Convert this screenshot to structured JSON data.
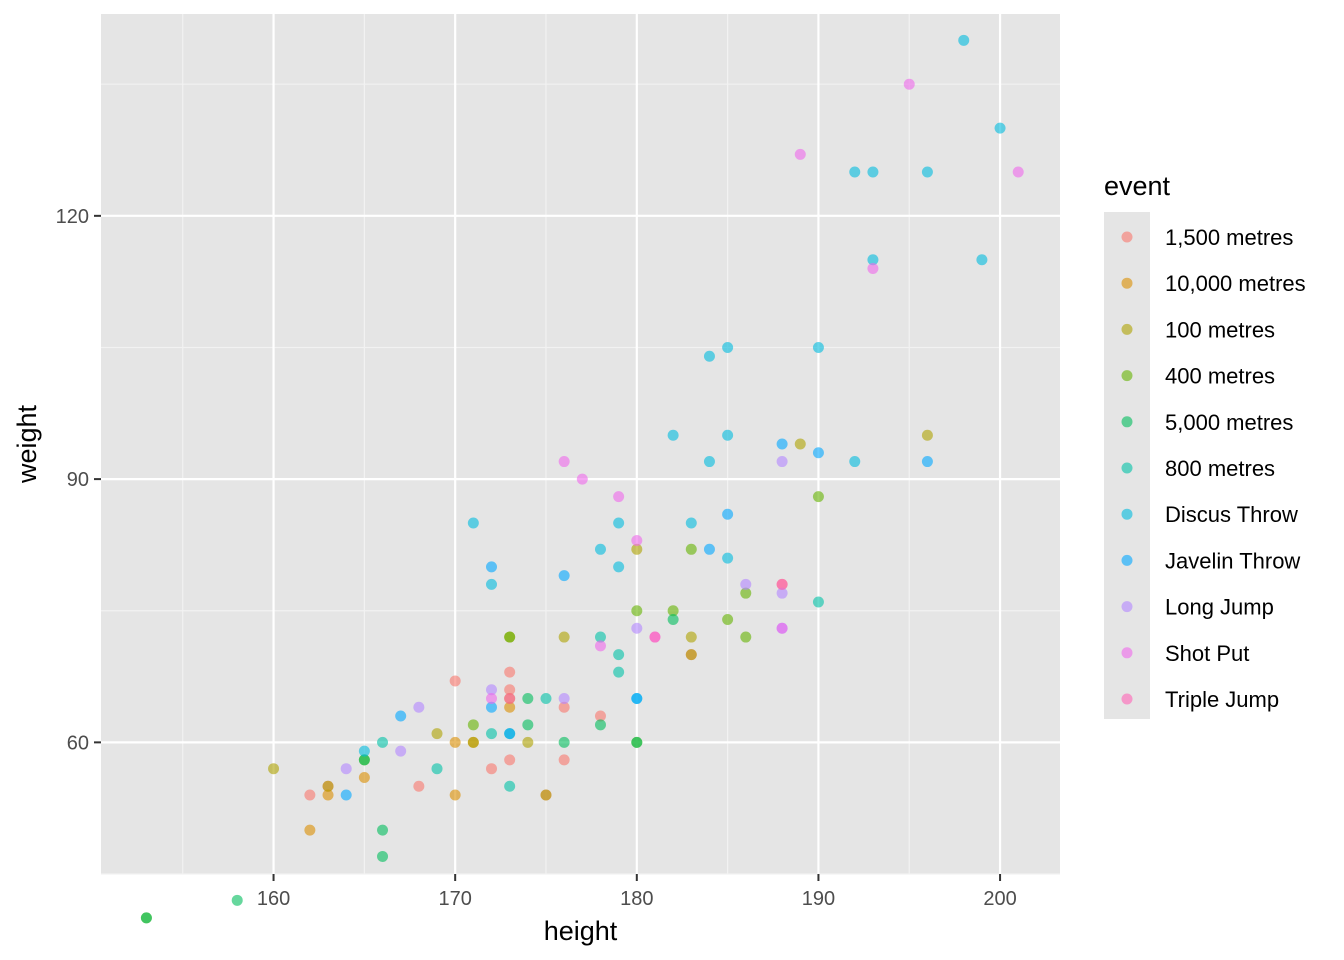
{
  "chart_data": {
    "type": "scatter",
    "xlabel": "height",
    "ylabel": "weight",
    "xlim": [
      150.5,
      203.3
    ],
    "ylim": [
      45,
      143
    ],
    "x_ticks": [
      160,
      170,
      180,
      190,
      200
    ],
    "y_ticks": [
      60,
      90,
      120
    ],
    "grid": true,
    "point_alpha": 0.6,
    "legend": {
      "title": "event",
      "position": "right"
    },
    "series": [
      {
        "name": "1,500 metres",
        "color": "#F8766D",
        "points": [
          [
            162,
            54
          ],
          [
            163,
            55
          ],
          [
            168,
            55
          ],
          [
            170,
            67
          ],
          [
            172,
            57
          ],
          [
            173,
            58
          ],
          [
            173,
            66
          ],
          [
            173,
            68
          ],
          [
            175,
            54
          ],
          [
            176,
            58
          ],
          [
            176,
            64
          ],
          [
            178,
            63
          ],
          [
            183,
            70
          ],
          [
            188,
            78
          ]
        ]
      },
      {
        "name": "10,000 metres",
        "color": "#DB8E00",
        "points": [
          [
            162,
            50
          ],
          [
            163,
            54
          ],
          [
            165,
            56
          ],
          [
            170,
            54
          ],
          [
            170,
            60
          ],
          [
            171,
            60
          ],
          [
            173,
            64
          ],
          [
            173,
            65
          ]
        ]
      },
      {
        "name": "100 metres",
        "color": "#AEA200",
        "points": [
          [
            160,
            57
          ],
          [
            163,
            55
          ],
          [
            169,
            61
          ],
          [
            171,
            60
          ],
          [
            173,
            72
          ],
          [
            174,
            60
          ],
          [
            175,
            54
          ],
          [
            176,
            72
          ],
          [
            180,
            82
          ],
          [
            183,
            70
          ],
          [
            183,
            72
          ],
          [
            189,
            94
          ],
          [
            196,
            95
          ]
        ]
      },
      {
        "name": "400 metres",
        "color": "#64B200",
        "points": [
          [
            153,
            40
          ],
          [
            165,
            58
          ],
          [
            171,
            62
          ],
          [
            173,
            72
          ],
          [
            180,
            60
          ],
          [
            180,
            75
          ],
          [
            182,
            75
          ],
          [
            183,
            82
          ],
          [
            185,
            74
          ],
          [
            186,
            72
          ],
          [
            186,
            77
          ],
          [
            190,
            88
          ]
        ]
      },
      {
        "name": "5,000 metres",
        "color": "#00BD5C",
        "points": [
          [
            153,
            40
          ],
          [
            158,
            42
          ],
          [
            165,
            58
          ],
          [
            166,
            47
          ],
          [
            166,
            50
          ],
          [
            174,
            62
          ],
          [
            174,
            65
          ],
          [
            176,
            60
          ],
          [
            178,
            62
          ],
          [
            180,
            60
          ],
          [
            182,
            74
          ]
        ]
      },
      {
        "name": "800 metres",
        "color": "#00C1A7",
        "points": [
          [
            166,
            60
          ],
          [
            169,
            57
          ],
          [
            172,
            61
          ],
          [
            173,
            55
          ],
          [
            173,
            61
          ],
          [
            175,
            65
          ],
          [
            178,
            72
          ],
          [
            179,
            68
          ],
          [
            179,
            70
          ],
          [
            190,
            76
          ]
        ]
      },
      {
        "name": "Discus Throw",
        "color": "#00BADE",
        "points": [
          [
            165,
            59
          ],
          [
            171,
            85
          ],
          [
            172,
            78
          ],
          [
            178,
            82
          ],
          [
            179,
            80
          ],
          [
            179,
            85
          ],
          [
            180,
            65
          ],
          [
            182,
            95
          ],
          [
            183,
            85
          ],
          [
            184,
            92
          ],
          [
            184,
            104
          ],
          [
            185,
            81
          ],
          [
            185,
            95
          ],
          [
            185,
            105
          ],
          [
            190,
            105
          ],
          [
            192,
            92
          ],
          [
            192,
            125
          ],
          [
            193,
            115
          ],
          [
            193,
            125
          ],
          [
            196,
            125
          ],
          [
            198,
            140
          ],
          [
            199,
            115
          ],
          [
            200,
            130
          ]
        ]
      },
      {
        "name": "Javelin Throw",
        "color": "#00A6FF",
        "points": [
          [
            164,
            54
          ],
          [
            167,
            63
          ],
          [
            172,
            64
          ],
          [
            172,
            80
          ],
          [
            173,
            61
          ],
          [
            176,
            79
          ],
          [
            180,
            65
          ],
          [
            184,
            82
          ],
          [
            185,
            86
          ],
          [
            188,
            94
          ],
          [
            190,
            93
          ],
          [
            196,
            92
          ]
        ]
      },
      {
        "name": "Long Jump",
        "color": "#B385FF",
        "points": [
          [
            164,
            57
          ],
          [
            167,
            59
          ],
          [
            168,
            64
          ],
          [
            172,
            66
          ],
          [
            176,
            65
          ],
          [
            180,
            73
          ],
          [
            186,
            78
          ],
          [
            188,
            73
          ],
          [
            188,
            77
          ],
          [
            188,
            92
          ]
        ]
      },
      {
        "name": "Shot Put",
        "color": "#EF67EB",
        "points": [
          [
            172,
            65
          ],
          [
            176,
            92
          ],
          [
            177,
            90
          ],
          [
            178,
            71
          ],
          [
            179,
            88
          ],
          [
            180,
            83
          ],
          [
            181,
            72
          ],
          [
            188,
            73
          ],
          [
            189,
            127
          ],
          [
            193,
            114
          ],
          [
            195,
            135
          ],
          [
            201,
            125
          ]
        ]
      },
      {
        "name": "Triple Jump",
        "color": "#FF63B6",
        "points": [
          [
            173,
            65
          ],
          [
            181,
            72
          ],
          [
            188,
            78
          ]
        ]
      }
    ]
  }
}
